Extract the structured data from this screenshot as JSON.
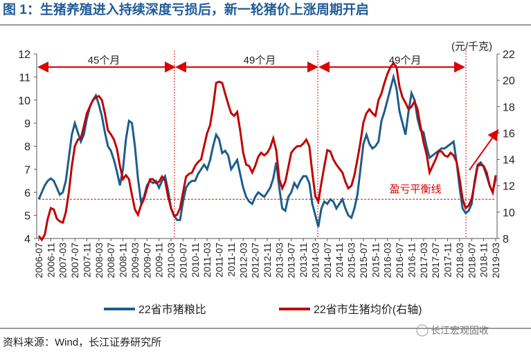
{
  "chart_data": {
    "type": "line",
    "title": "图 1：生猪养殖进入持续深度亏损后，新一轮猪价上涨周期开启",
    "y2_label": "(元/千克)",
    "categories": [
      "2006-07",
      null,
      null,
      null,
      "2006-11",
      null,
      null,
      null,
      "2007-03",
      null,
      null,
      null,
      "2007-07",
      null,
      null,
      null,
      "2007-11",
      null,
      null,
      null,
      "2008-03",
      null,
      null,
      null,
      "2008-07",
      null,
      null,
      null,
      "2008-11",
      null,
      null,
      null,
      "2009-03",
      null,
      null,
      null,
      "2009-07",
      null,
      null,
      null,
      "2009-11",
      null,
      null,
      null,
      "2010-03",
      null,
      null,
      null,
      "2010-07",
      null,
      null,
      null,
      "2010-11",
      null,
      null,
      null,
      "2011-03",
      null,
      null,
      null,
      "2011-07",
      null,
      null,
      null,
      "2011-11",
      null,
      null,
      null,
      "2012-03",
      null,
      null,
      null,
      "2012-07",
      null,
      null,
      null,
      "2012-11",
      null,
      null,
      null,
      "2013-03",
      null,
      null,
      null,
      "2013-07",
      null,
      null,
      null,
      "2013-11",
      null,
      null,
      null,
      "2014-03",
      null,
      null,
      null,
      "2014-07",
      null,
      null,
      null,
      "2014-11",
      null,
      null,
      null,
      "2015-03",
      null,
      null,
      null,
      "2015-07",
      null,
      null,
      null,
      "2015-11",
      null,
      null,
      null,
      "2016-03",
      null,
      null,
      null,
      "2016-07",
      null,
      null,
      null,
      "2016-11",
      null,
      null,
      null,
      "2017-03",
      null,
      null,
      null,
      "2017-07",
      null,
      null,
      null,
      "2017-11",
      null,
      null,
      null,
      "2018-03",
      null,
      null,
      null,
      "2018-07",
      null,
      null,
      null,
      "2018-11",
      null,
      null,
      null,
      "2019-03"
    ],
    "series": [
      {
        "name": "22省市猪粮比",
        "color": "#1b5d8c",
        "axis": "y",
        "values": [
          5.7,
          6.0,
          6.3,
          6.5,
          6.6,
          6.5,
          6.2,
          5.9,
          6.0,
          6.5,
          7.5,
          8.5,
          9.0,
          8.6,
          8.2,
          8.5,
          9.2,
          9.7,
          10.0,
          10.2,
          9.8,
          9.3,
          8.6,
          8.0,
          7.8,
          7.4,
          6.9,
          6.3,
          7.0,
          8.3,
          9.1,
          9.0,
          8.0,
          6.6,
          5.6,
          5.8,
          6.3,
          6.5,
          6.4,
          6.5,
          6.2,
          6.5,
          6.7,
          6.1,
          5.3,
          5.0,
          4.8,
          4.8,
          5.6,
          6.2,
          6.4,
          6.5,
          6.5,
          6.8,
          7.0,
          7.2,
          7.0,
          7.4,
          8.0,
          8.5,
          8.3,
          7.7,
          7.8,
          7.6,
          7.0,
          7.2,
          7.4,
          6.8,
          6.2,
          5.8,
          5.6,
          5.5,
          5.8,
          6.0,
          5.9,
          5.8,
          6.0,
          6.2,
          6.6,
          7.3,
          6.2,
          5.3,
          5.2,
          5.8,
          6.0,
          6.4,
          6.2,
          6.5,
          6.7,
          6.7,
          6.4,
          5.5,
          5.0,
          4.5,
          5.3,
          5.6,
          5.5,
          5.7,
          5.6,
          5.3,
          5.5,
          5.7,
          5.3,
          5.0,
          4.9,
          5.3,
          5.9,
          7.0,
          8.1,
          8.5,
          8.1,
          7.9,
          8.0,
          8.2,
          9.1,
          9.5,
          10.0,
          10.5,
          11.0,
          10.5,
          9.5,
          9.0,
          8.5,
          9.5,
          10.3,
          10.0,
          9.2,
          8.7,
          8.6,
          8.0,
          7.5,
          7.6,
          7.7,
          7.8,
          7.9,
          7.9,
          8.0,
          8.1,
          8.2,
          7.3,
          6.2,
          5.3,
          5.1,
          5.2,
          5.5,
          6.5,
          7.2,
          7.3,
          7.1,
          6.7,
          6.3,
          6.0,
          6.6
        ]
      },
      {
        "name": "22省市生猪均价(右轴)",
        "color": "#c00000",
        "axis": "y2",
        "values": [
          8.2,
          7.9,
          8.3,
          9.5,
          10.3,
          10.2,
          9.5,
          9.3,
          9.2,
          10.0,
          11.5,
          13.5,
          15.0,
          15.5,
          15.6,
          16.5,
          17.5,
          18.0,
          18.5,
          18.7,
          18.8,
          18.5,
          17.5,
          16.2,
          15.9,
          15.5,
          14.8,
          13.5,
          12.5,
          12.8,
          12.5,
          11.3,
          10.2,
          9.8,
          10.5,
          11.0,
          11.8,
          12.5,
          12.5,
          12.2,
          12.3,
          12.7,
          12.4,
          11.2,
          10.3,
          9.7,
          9.8,
          10.3,
          11.5,
          12.7,
          12.9,
          13.0,
          13.5,
          13.8,
          14.0,
          15.0,
          16.0,
          16.6,
          18.0,
          19.8,
          19.9,
          19.8,
          19.0,
          18.2,
          17.5,
          17.3,
          17.6,
          16.2,
          14.5,
          13.6,
          13.5,
          13.0,
          13.5,
          14.2,
          14.5,
          14.3,
          14.5,
          14.9,
          15.6,
          14.7,
          12.5,
          11.8,
          12.3,
          13.4,
          14.5,
          14.8,
          15.0,
          15.0,
          15.2,
          15.5,
          15.0,
          13.0,
          11.2,
          10.8,
          12.2,
          13.5,
          14.7,
          14.6,
          14.0,
          13.6,
          13.3,
          13.0,
          12.3,
          11.8,
          12.0,
          12.8,
          14.0,
          15.3,
          16.8,
          17.5,
          17.8,
          17.5,
          17.3,
          18.5,
          19.0,
          19.8,
          20.5,
          21.0,
          21.3,
          21.0,
          19.5,
          18.7,
          18.3,
          17.8,
          18.0,
          18.4,
          17.8,
          16.5,
          15.3,
          14.4,
          13.0,
          13.5,
          14.0,
          14.6,
          14.6,
          14.3,
          14.2,
          14.5,
          14.3,
          13.8,
          12.5,
          11.0,
          10.3,
          10.5,
          11.0,
          12.2,
          13.5,
          13.6,
          13.5,
          13.0,
          12.0,
          11.5,
          12.8
        ]
      }
    ],
    "ylim": [
      4,
      12
    ],
    "yticks": [
      4,
      5,
      6,
      7,
      8,
      9,
      10,
      11,
      12
    ],
    "y2lim": [
      8,
      22
    ],
    "y2ticks": [
      8,
      10,
      12,
      14,
      16,
      18,
      20,
      22
    ],
    "reference_line": {
      "label": "盈亏平衡线",
      "value": 5.7
    },
    "annotations": [
      "45个月",
      "49个月",
      "49个月"
    ],
    "source": "资料来源：Wind，长江证券研究所",
    "watermark": "长江宏观固收"
  }
}
